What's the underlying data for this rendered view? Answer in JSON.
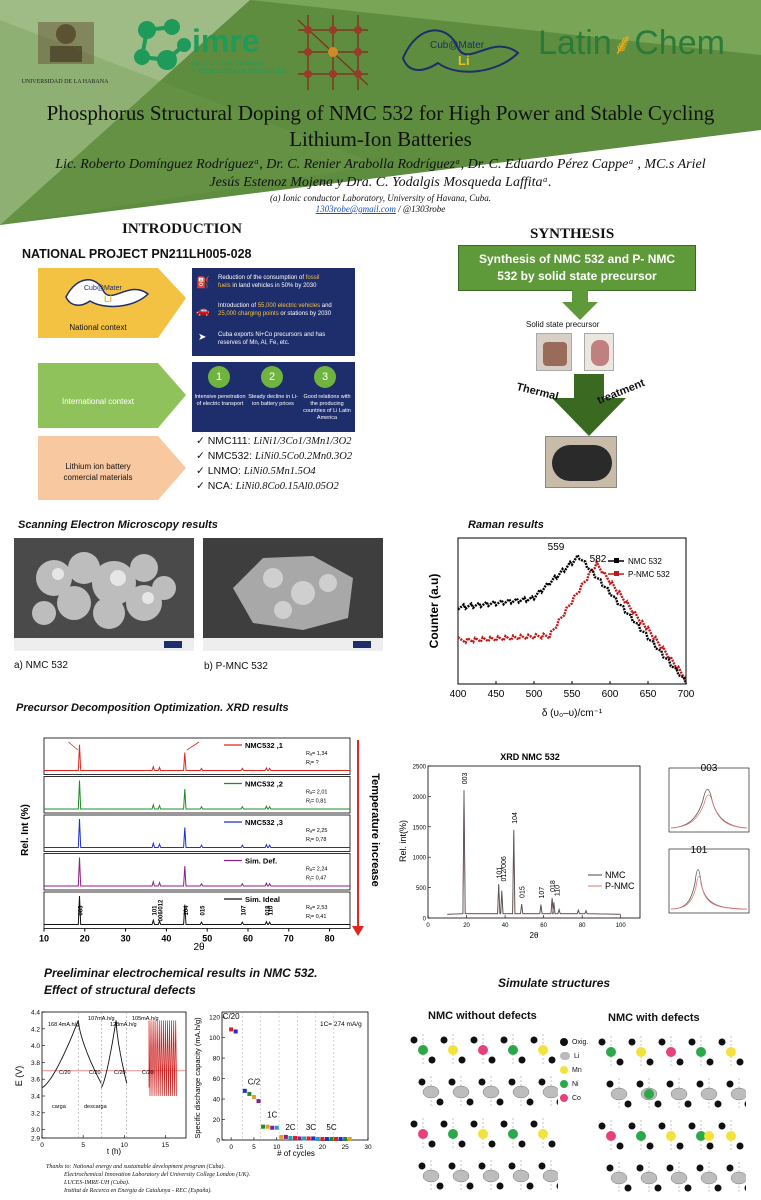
{
  "header": {
    "logos": {
      "uh": "UNIVERSIDAD DE LA HABANA",
      "imre_big": "imre",
      "imre_small_1": "INSTITUTO DE CIENCIAS",
      "imre_small_2": "Y TECNOLOGÍA DE MATERIALES",
      "cubmater": "Cub@Mater",
      "cubmater_li": "Li",
      "latinchem_1": "Latin",
      "latinchem_2": "Chem"
    },
    "title_line1": "Phosphorus Structural Doping of NMC 532 for High Power and Stable Cycling",
    "title_line2": "Lithium-Ion Batteries",
    "authors_line1": "Lic. Roberto Domínguez Rodríguezᵃ, Dr. C. Renier Arabolla Rodríguezᵃ, Dr. C. Eduardo Pérez Cappeᵃ , MC.s Ariel",
    "authors_line2": "Jesús Estenoz Mojena y  Dra. C. Yodalgis Mosqueda Laffitaᵃ.",
    "affiliation": "(a) Ionic conductor Laboratory, University of Havana, Cuba.",
    "email": "1303robe@gmail.com",
    "handle": " / @1303robe"
  },
  "colors": {
    "green_dark": "#5a8a3a",
    "green_mid": "#8fbb6a",
    "orange": "#f2c45a",
    "peach": "#f5c9a0",
    "navy": "#1e2d6b"
  },
  "introduction": {
    "title": "INTRODUCTION",
    "project": "NATIONAL PROJECT PN211LH005-028",
    "national_label": "National context",
    "international_label": "International context",
    "lib_label_1": "Lithium ion battery",
    "lib_label_2": "comercial materials",
    "national_items": [
      {
        "icon": "gas-pump-icon",
        "pre": "Reduction of the consumption of ",
        "hl": "fossil",
        "post": "",
        "line2_hl": "fuels",
        "line2": " in land vehicles in 50% by 2030"
      },
      {
        "icon": "car-icon",
        "pre": "Introduction of ",
        "hl": "55,000 electric vehicles",
        "post": " and",
        "line2_hl": "25,000 charging points",
        "line2": " or stations by 2030"
      },
      {
        "icon": "export-icon",
        "pre": "Cuba exports Ni+Co precursors and has",
        "hl": "",
        "post": "",
        "line2_hl": "",
        "line2": "reserves of Mn, Al, Fe, etc."
      }
    ],
    "international_items": [
      {
        "num": "1",
        "line1": "Intensive penetration",
        "line2": "of electric transport"
      },
      {
        "num": "2",
        "line1": "Steady decline in Li-",
        "line2": "ion battery prices"
      },
      {
        "num": "3",
        "line1": "Good relations with the producing",
        "line2": "countries of Li Latin America"
      }
    ],
    "materials": [
      {
        "name": "NMC111:",
        "formula": "LiNi1/3Co1/3Mn1/3O2"
      },
      {
        "name": "NMC532:",
        "formula": "LiNi0.5Co0.2Mn0.3O2"
      },
      {
        "name": "LNMO:",
        "formula": "LiNi0.5Mn1.5O4"
      },
      {
        "name": "NCA:",
        "formula": "LiNi0.8Co0.15Al0.05O2"
      }
    ]
  },
  "synthesis": {
    "title": "SYNTHESIS",
    "box_line1": "Synthesis of NMC 532 and P- NMC",
    "box_line2": "532 by solid state precursor",
    "precursor_label": "Solid state precursor",
    "thermal": "Thermal",
    "treatment": "treatment"
  },
  "sem": {
    "title": "Scanning Electron Microscopy  results",
    "caption_a": "a) NMC 532",
    "caption_b": "b) P-MNC 532"
  },
  "raman": {
    "title": "Raman results",
    "peak1": "559",
    "peak2": "582",
    "legend": [
      "NMC 532",
      "P-NMC 532"
    ],
    "ylabel": "Counter (a.u)",
    "xlabel": "δ (υ₀–υ)/cm⁻¹",
    "xticks": [
      "400",
      "450",
      "500",
      "550",
      "600",
      "650",
      "700"
    ]
  },
  "xrd_opt": {
    "title": "Precursor Decomposition Optimization. XRD results",
    "ylabel": "Rel. Int (%)",
    "xlabel": "2θ",
    "side_label": "Temperature increase",
    "panels": [
      {
        "name": "NMC532 ,1",
        "r1": "Rₐ= 1,34",
        "r2": "Rⱼ= ?",
        "color": "#e0261f"
      },
      {
        "name": "NMC532 ,2",
        "r1": "Rₐ= 2,01",
        "r2": "Rⱼ= 0,81",
        "color": "#1f8a2a"
      },
      {
        "name": "NMC532 ,3",
        "r1": "Rₐ= 2,25",
        "r2": "Rⱼ= 0,78",
        "color": "#1f2fd0"
      },
      {
        "name": "Sim. Def.",
        "r1": "Rₐ= 2,24",
        "r2": "Rⱼ= 0,47",
        "color": "#8b1f8b"
      },
      {
        "name": "Sim. Ideal",
        "r1": "Rₐ= 2,53",
        "r2": "Rⱼ= 0,41",
        "color": "#111111"
      }
    ],
    "peak_labels": [
      "003",
      "101",
      "006/012",
      "104",
      "015",
      "107",
      "018",
      "110"
    ],
    "xticks": [
      "10",
      "20",
      "30",
      "40",
      "50",
      "60",
      "70",
      "80"
    ]
  },
  "xrd_nmc": {
    "title": "XRD NMC 532",
    "ylabel": "Rel. int(%)",
    "xlabel": "2θ",
    "yticks": [
      "0",
      "500",
      "1000",
      "1500",
      "2000",
      "2500"
    ],
    "xticks": [
      "0",
      "20",
      "40",
      "60",
      "80",
      "100"
    ],
    "peak_labels": [
      "003",
      "101",
      "012/006",
      "104",
      "015",
      "107",
      "018",
      "110"
    ],
    "legend": [
      "NMC",
      "P-NMC"
    ],
    "inset1_label": "003",
    "inset2_label": "101"
  },
  "electrochem": {
    "title_1": "Preeliminar electrochemical results in NMC 532.",
    "title_2": "Effect of structural defects",
    "ylabel": "E (V)",
    "xlabel": "t (h)",
    "yticks": [
      "2.9",
      "3.0",
      "3.2",
      "3.4",
      "3.6",
      "3.8",
      "4.0",
      "4.2",
      "4.4"
    ],
    "xticks": [
      "0",
      "5",
      "10",
      "15"
    ],
    "annots": [
      "168.4mA.h/g",
      "107mA.h/g",
      "128mA.h/g",
      "105mA.h/g",
      "C/20",
      "C/20",
      "C/20",
      "C/20",
      "carga",
      "descarga"
    ],
    "cap_ylabel": "Specific discharge capacity (mA.h/g)",
    "cap_xlabel": "# of cycles",
    "cap_yticks": [
      "0",
      "20",
      "40",
      "60",
      "80",
      "100",
      "120"
    ],
    "cap_xticks": [
      "0",
      "5",
      "10",
      "15",
      "20",
      "25",
      "30"
    ],
    "rate_labels": [
      "C/20",
      "C/2",
      "1C",
      "2C",
      "3C",
      "5C"
    ],
    "note": "1C= 274 mA/g"
  },
  "structures": {
    "title": "Simulate structures",
    "left": "NMC without defects",
    "right": "NMC with defects",
    "legend": [
      "Oxig.",
      "Li",
      "Mn",
      "Ni",
      "Co"
    ]
  },
  "thanks": {
    "line1": "Thanks to:  National energy and sustainable development program (Cuba).",
    "line2": "Electrochemical Innovation Laboratory del University College London (UK).",
    "line3": "LUCES-IMRE-UH (Cuba).",
    "line4": "Institut de Recerca en Energia de Catalunya - REC  (España)."
  }
}
